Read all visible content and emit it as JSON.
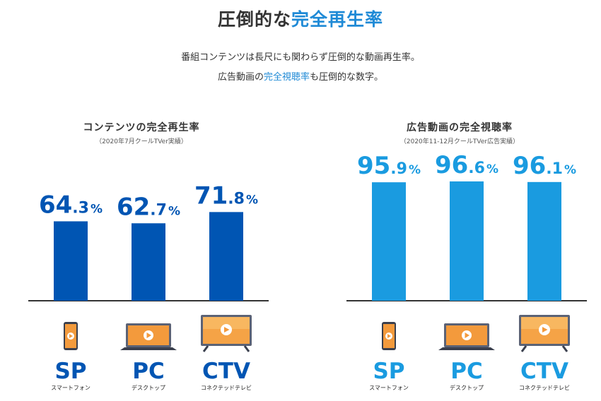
{
  "header": {
    "title_prefix": "圧倒的な",
    "title_highlight": "完全再生率",
    "lead_line1": "番組コンテンツは長尺にも関わらず圧倒的な動画再生率。",
    "lead_line2_prefix": "広告動画の",
    "lead_line2_highlight": "完全視聴率",
    "lead_line2_suffix": "も圧倒的な数字。"
  },
  "colors": {
    "left_accent": "#0055b3",
    "right_accent": "#1a9be0",
    "highlight": "#1f8ad6"
  },
  "chart_data": [
    {
      "type": "bar",
      "title": "コンテンツの完全再生率",
      "subtitle": "（2020年7月クールTVer実績）",
      "categories": [
        "SP",
        "PC",
        "CTV"
      ],
      "category_sublabels": [
        "スマートフォン",
        "デスクトップ",
        "コネクテッドテレビ"
      ],
      "category_icons": [
        "smartphone-icon",
        "laptop-icon",
        "tv-icon"
      ],
      "values": [
        64.3,
        62.7,
        71.8
      ],
      "value_suffix": "%",
      "ylim": [
        0,
        100
      ],
      "grid": false,
      "color": "#0055b3"
    },
    {
      "type": "bar",
      "title": "広告動画の完全視聴率",
      "subtitle": "（2020年11-12月クールTVer広告実績）",
      "categories": [
        "SP",
        "PC",
        "CTV"
      ],
      "category_sublabels": [
        "スマートフォン",
        "デスクトップ",
        "コネクテッドテレビ"
      ],
      "category_icons": [
        "smartphone-icon",
        "laptop-icon",
        "tv-icon"
      ],
      "values": [
        95.9,
        96.6,
        96.1
      ],
      "value_suffix": "%",
      "ylim": [
        0,
        100
      ],
      "grid": false,
      "color": "#1a9be0"
    }
  ]
}
